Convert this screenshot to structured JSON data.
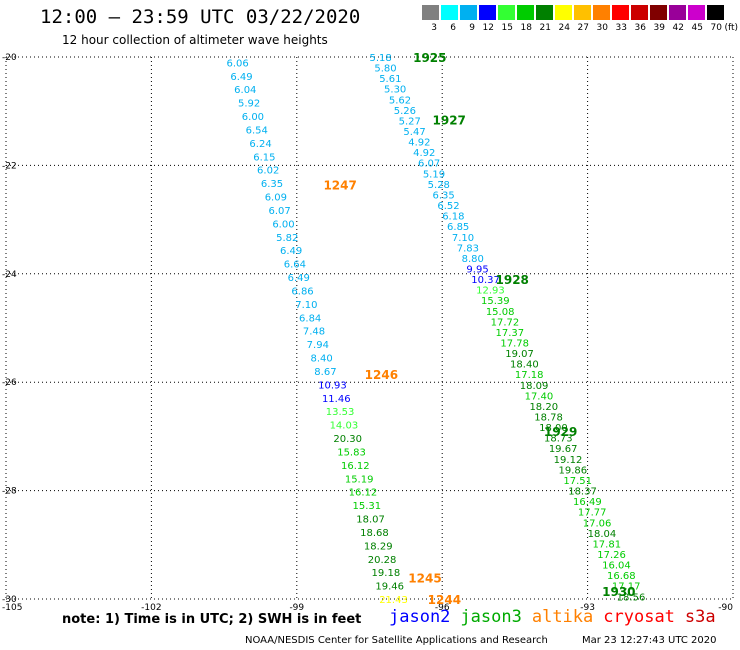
{
  "title": "12:00 – 23:59 UTC 03/22/2020",
  "subtitle": "12 hour collection of altimeter wave heights",
  "legend": {
    "unit": "(ft)",
    "bins": [
      {
        "label": "3",
        "color": "#808080"
      },
      {
        "label": "6",
        "color": "#00ffff"
      },
      {
        "label": "9",
        "color": "#00b0f0"
      },
      {
        "label": "12",
        "color": "#0000ff"
      },
      {
        "label": "15",
        "color": "#33ff33"
      },
      {
        "label": "18",
        "color": "#00cc00"
      },
      {
        "label": "21",
        "color": "#008000"
      },
      {
        "label": "24",
        "color": "#ffff00"
      },
      {
        "label": "27",
        "color": "#ffc000"
      },
      {
        "label": "30",
        "color": "#ff8000"
      },
      {
        "label": "33",
        "color": "#ff0000"
      },
      {
        "label": "36",
        "color": "#cc0000"
      },
      {
        "label": "39",
        "color": "#800000"
      },
      {
        "label": "42",
        "color": "#990099"
      },
      {
        "label": "45",
        "color": "#cc00cc"
      },
      {
        "label": "70",
        "color": "#000000"
      }
    ]
  },
  "axes": {
    "lon_ticks": [
      -105,
      -102,
      -99,
      -96,
      -93,
      -90
    ],
    "lat_ticks": [
      -20,
      -22,
      -24,
      -26,
      -28,
      -30
    ]
  },
  "passes": [
    {
      "time": "1925",
      "lon": -96.6,
      "lat": -20.0,
      "color": "#008000"
    },
    {
      "time": "1927",
      "lon": -96.2,
      "lat": -21.15,
      "color": "#008000"
    },
    {
      "time": "1928",
      "lon": -94.9,
      "lat": -24.1,
      "color": "#008000"
    },
    {
      "time": "1929",
      "lon": -93.9,
      "lat": -26.9,
      "color": "#008000"
    },
    {
      "time": "1930",
      "lon": -92.7,
      "lat": -29.85,
      "color": "#008000"
    },
    {
      "time": "1247",
      "lon": -98.45,
      "lat": -22.35,
      "color": "#ff8000"
    },
    {
      "time": "1246",
      "lon": -97.6,
      "lat": -25.85,
      "color": "#ff8000"
    },
    {
      "time": "1245",
      "lon": -96.7,
      "lat": -29.6,
      "color": "#ff8000"
    },
    {
      "time": "1244",
      "lon": -96.3,
      "lat": -30.0,
      "color": "#ff8000"
    }
  ],
  "tracks": [
    {
      "name": "altika",
      "lon_start": -100.45,
      "lat_start": -20.1,
      "lon_end": -97.3,
      "lat_end": -30.0,
      "values": [
        {
          "v": "6.06",
          "c": "#00b0f0"
        },
        {
          "v": "6.49",
          "c": "#00b0f0"
        },
        {
          "v": "6.04",
          "c": "#00b0f0"
        },
        {
          "v": "5.92",
          "c": "#00b0f0"
        },
        {
          "v": "6.00",
          "c": "#00b0f0"
        },
        {
          "v": "6.54",
          "c": "#00b0f0"
        },
        {
          "v": "6.24",
          "c": "#00b0f0"
        },
        {
          "v": "6.15",
          "c": "#00b0f0"
        },
        {
          "v": "6.02",
          "c": "#00b0f0"
        },
        {
          "v": "6.35",
          "c": "#00b0f0"
        },
        {
          "v": "6.09",
          "c": "#00b0f0"
        },
        {
          "v": "6.07",
          "c": "#00b0f0"
        },
        {
          "v": "6.00",
          "c": "#00b0f0"
        },
        {
          "v": "5.82",
          "c": "#00b0f0"
        },
        {
          "v": "6.49",
          "c": "#00b0f0"
        },
        {
          "v": "6.64",
          "c": "#00b0f0"
        },
        {
          "v": "6.49",
          "c": "#00b0f0"
        },
        {
          "v": "6.86",
          "c": "#00b0f0"
        },
        {
          "v": "7.10",
          "c": "#00b0f0"
        },
        {
          "v": "6.84",
          "c": "#00b0f0"
        },
        {
          "v": "7.48",
          "c": "#00b0f0"
        },
        {
          "v": "7.94",
          "c": "#00b0f0"
        },
        {
          "v": "8.40",
          "c": "#00b0f0"
        },
        {
          "v": "8.67",
          "c": "#00b0f0"
        },
        {
          "v": "10.93",
          "c": "#0000ff"
        },
        {
          "v": "11.46",
          "c": "#0000ff"
        },
        {
          "v": "13.53",
          "c": "#33ff33"
        },
        {
          "v": "14.03",
          "c": "#33ff33"
        },
        {
          "v": "20.30",
          "c": "#008000"
        },
        {
          "v": "15.83",
          "c": "#00cc00"
        },
        {
          "v": "16.12",
          "c": "#00cc00"
        },
        {
          "v": "15.19",
          "c": "#00cc00"
        },
        {
          "v": "16.12",
          "c": "#00cc00"
        },
        {
          "v": "15.31",
          "c": "#00cc00"
        },
        {
          "v": "18.07",
          "c": "#008000"
        },
        {
          "v": "18.68",
          "c": "#008000"
        },
        {
          "v": "18.29",
          "c": "#008000"
        },
        {
          "v": "20.28",
          "c": "#008000"
        },
        {
          "v": "19.18",
          "c": "#008000"
        },
        {
          "v": "19.46",
          "c": "#008000"
        },
        {
          "v": "21.43",
          "c": "#ffff00"
        }
      ]
    },
    {
      "name": "jason3",
      "lon_start": -97.5,
      "lat_start": -20.0,
      "lon_end": -92.4,
      "lat_end": -29.95,
      "values": [
        {
          "v": "5.18",
          "c": "#00b0f0"
        },
        {
          "v": "5.80",
          "c": "#00b0f0"
        },
        {
          "v": "5.61",
          "c": "#00b0f0"
        },
        {
          "v": "5.30",
          "c": "#00b0f0"
        },
        {
          "v": "5.62",
          "c": "#00b0f0"
        },
        {
          "v": "5.26",
          "c": "#00b0f0"
        },
        {
          "v": "5.27",
          "c": "#00b0f0"
        },
        {
          "v": "5.47",
          "c": "#00b0f0"
        },
        {
          "v": "4.92",
          "c": "#00b0f0"
        },
        {
          "v": "4.92",
          "c": "#00b0f0"
        },
        {
          "v": "6.07",
          "c": "#00b0f0"
        },
        {
          "v": "5.19",
          "c": "#00b0f0"
        },
        {
          "v": "5.28",
          "c": "#00b0f0"
        },
        {
          "v": "6.35",
          "c": "#00b0f0"
        },
        {
          "v": "6.52",
          "c": "#00b0f0"
        },
        {
          "v": "6.18",
          "c": "#00b0f0"
        },
        {
          "v": "6.85",
          "c": "#00b0f0"
        },
        {
          "v": "7.10",
          "c": "#00b0f0"
        },
        {
          "v": "7.83",
          "c": "#00b0f0"
        },
        {
          "v": "8.80",
          "c": "#00b0f0"
        },
        {
          "v": "9.95",
          "c": "#0000ff"
        },
        {
          "v": "10.37",
          "c": "#0000ff"
        },
        {
          "v": "12.93",
          "c": "#33ff33"
        },
        {
          "v": "15.39",
          "c": "#00cc00"
        },
        {
          "v": "15.08",
          "c": "#00cc00"
        },
        {
          "v": "17.72",
          "c": "#00cc00"
        },
        {
          "v": "17.37",
          "c": "#00cc00"
        },
        {
          "v": "17.78",
          "c": "#00cc00"
        },
        {
          "v": "19.07",
          "c": "#008000"
        },
        {
          "v": "18.40",
          "c": "#008000"
        },
        {
          "v": "17.18",
          "c": "#00cc00"
        },
        {
          "v": "18.09",
          "c": "#008000"
        },
        {
          "v": "17.40",
          "c": "#00cc00"
        },
        {
          "v": "18.20",
          "c": "#008000"
        },
        {
          "v": "18.78",
          "c": "#008000"
        },
        {
          "v": "18.00",
          "c": "#008000"
        },
        {
          "v": "18.73",
          "c": "#008000"
        },
        {
          "v": "19.67",
          "c": "#008000"
        },
        {
          "v": "19.12",
          "c": "#008000"
        },
        {
          "v": "19.86",
          "c": "#008000"
        },
        {
          "v": "17.51",
          "c": "#00cc00"
        },
        {
          "v": "18.37",
          "c": "#008000"
        },
        {
          "v": "16.49",
          "c": "#00cc00"
        },
        {
          "v": "17.77",
          "c": "#00cc00"
        },
        {
          "v": "17.06",
          "c": "#00cc00"
        },
        {
          "v": "18.04",
          "c": "#008000"
        },
        {
          "v": "17.81",
          "c": "#00cc00"
        },
        {
          "v": "17.26",
          "c": "#00cc00"
        },
        {
          "v": "16.04",
          "c": "#00cc00"
        },
        {
          "v": "16.68",
          "c": "#00cc00"
        },
        {
          "v": "17.17",
          "c": "#00cc00"
        },
        {
          "v": "18.56",
          "c": "#008000"
        }
      ]
    }
  ],
  "note": "note:  1) Time is in UTC;  2) SWH is in feet",
  "satellites": [
    {
      "name": "jason2",
      "color": "#0000ff"
    },
    {
      "name": "jason3",
      "color": "#00aa00"
    },
    {
      "name": "altika",
      "color": "#ff8000"
    },
    {
      "name": "cryosat",
      "color": "#ff0000"
    },
    {
      "name": "s3a",
      "color": "#cc0000"
    }
  ],
  "credit": "NOAA/NESDIS Center for Satellite Applications and Research",
  "timestamp": "Mar 23 12:27:43 UTC 2020"
}
